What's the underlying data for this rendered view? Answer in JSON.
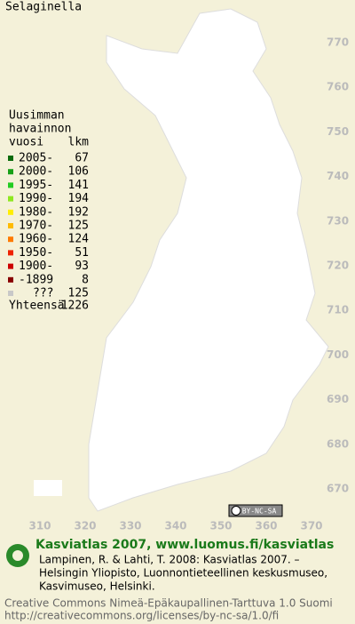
{
  "title": "Selaginella",
  "legend": {
    "heading": [
      "Uusimman",
      "havainnon"
    ],
    "heading_year": "vuosi",
    "heading_count": "lkm",
    "items": [
      {
        "label": "2005-",
        "count": 67,
        "color": "#0b6b0b"
      },
      {
        "label": "2000-",
        "count": 106,
        "color": "#17a017"
      },
      {
        "label": "1995-",
        "count": 141,
        "color": "#22cc22"
      },
      {
        "label": "1990-",
        "count": 194,
        "color": "#8ee820"
      },
      {
        "label": "1980-",
        "count": 192,
        "color": "#ffee00"
      },
      {
        "label": "1970-",
        "count": 125,
        "color": "#ffbb00"
      },
      {
        "label": "1960-",
        "count": 124,
        "color": "#ff7a00"
      },
      {
        "label": "1950-",
        "count": 51,
        "color": "#ee2200"
      },
      {
        "label": "1900-",
        "count": 93,
        "color": "#cc0000"
      },
      {
        "label": "-1899",
        "count": 8,
        "color": "#880000"
      },
      {
        "label": "???",
        "count": 125,
        "color": "#c8c8c8"
      }
    ],
    "total_label": "Yhteensä",
    "total": 1226
  },
  "grid": {
    "xticks": [
      310,
      320,
      330,
      340,
      350,
      360,
      370
    ],
    "yticks": [
      770,
      760,
      750,
      740,
      730,
      720,
      710,
      700,
      690,
      680,
      670
    ]
  },
  "badge": "BY-NC-SA",
  "footer": {
    "headline": "Kasviatlas 2007, www.luomus.fi/kasviatlas",
    "reference": [
      "Lampinen, R. & Lahti, T. 2008: Kasviatlas 2007. –",
      "Helsingin Yliopisto, Luonnontieteellinen keskusmuseo,",
      "Kasvimuseo, Helsinki."
    ],
    "license": [
      "Creative Commons Nimeä-Epäkaupallinen-Tarttuva 1.0 Suomi",
      "http://creativecommons.org/licenses/by-nc-sa/1.0/fi"
    ]
  }
}
